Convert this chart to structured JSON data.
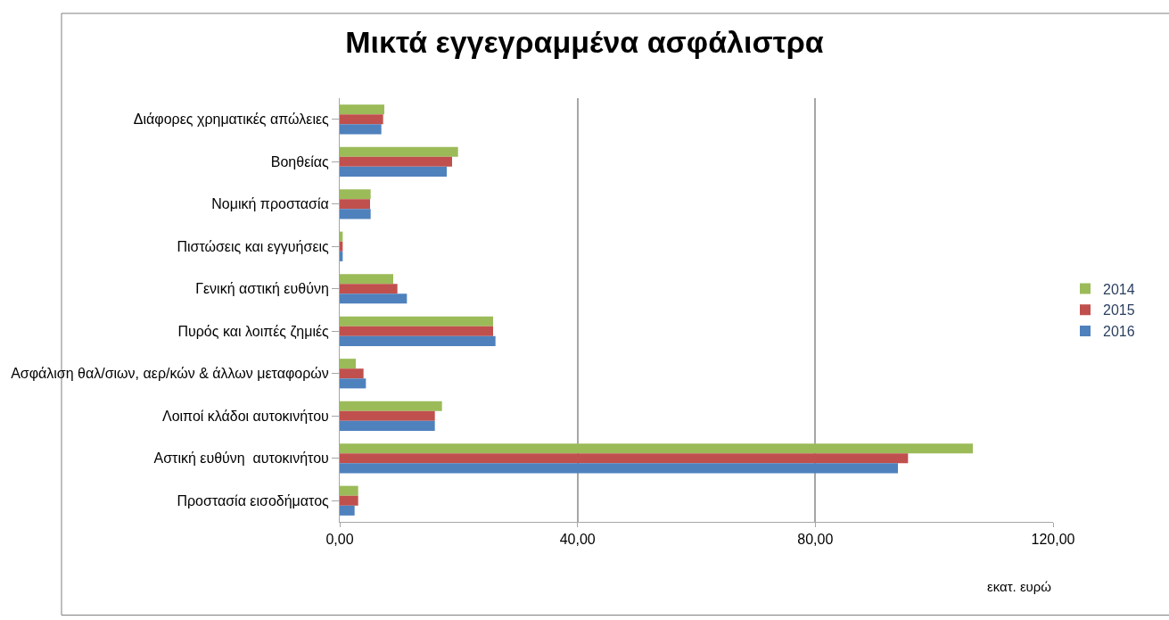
{
  "chart_data": {
    "type": "bar",
    "orientation": "horizontal",
    "title": "Μικτά εγγεγραμμένα ασφάλιστρα",
    "xlabel": "εκατ. ευρώ",
    "categories": [
      "Διάφορες χρηματικές απώλειες",
      "Βοηθείας",
      "Νομική προστασία",
      "Πιστώσεις και εγγυήσεις",
      "Γενική αστική ευθύνη",
      "Πυρός και λοιπές ζημιές",
      "Ασφάλιση θαλ/σιων, αερ/κών & άλλων μεταφορών",
      "Λοιποί κλάδοι αυτοκινήτου",
      "Αστική ευθύνη  αυτοκινήτου",
      "Προστασία εισοδήματος"
    ],
    "series": [
      {
        "name": "2014",
        "color": "#9bbb59",
        "values": [
          7.5,
          19.9,
          5.2,
          0.5,
          9.0,
          25.8,
          2.7,
          17.2,
          106.5,
          3.1
        ]
      },
      {
        "name": "2015",
        "color": "#c0504d",
        "values": [
          7.3,
          18.9,
          5.1,
          0.5,
          9.7,
          25.8,
          4.0,
          16.0,
          95.6,
          3.1
        ]
      },
      {
        "name": "2016",
        "color": "#4f81bd",
        "values": [
          7.0,
          18.0,
          5.2,
          0.5,
          11.3,
          26.2,
          4.4,
          16.0,
          93.9,
          2.5
        ]
      }
    ],
    "xlim": [
      0,
      120
    ],
    "xticks": [
      {
        "value": 0,
        "label": "0,00"
      },
      {
        "value": 40,
        "label": "40,00"
      },
      {
        "value": 80,
        "label": "80,00"
      },
      {
        "value": 120,
        "label": "120,00"
      }
    ],
    "grid": "x",
    "legend": "right"
  }
}
